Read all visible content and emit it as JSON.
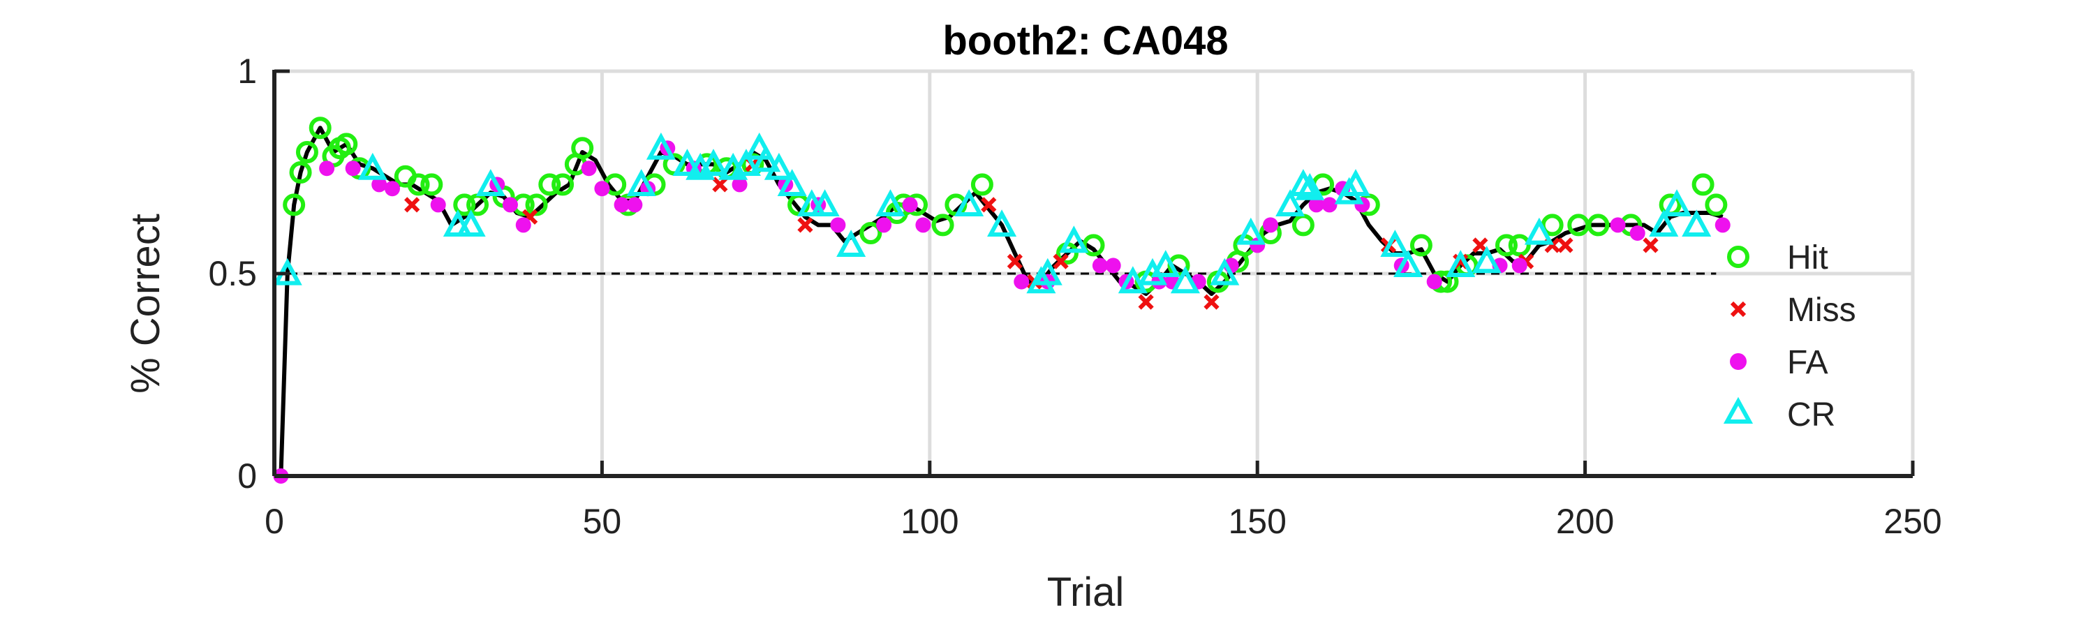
{
  "chart_data": {
    "type": "line",
    "title": "booth2: CA048",
    "xlabel": "Trial",
    "ylabel": "% Correct",
    "xlim": [
      0,
      250
    ],
    "ylim": [
      0,
      1
    ],
    "xticks": [
      0,
      50,
      100,
      150,
      200,
      250
    ],
    "xtick_labels": [
      "0",
      "50",
      "100",
      "150",
      "200",
      "250"
    ],
    "yticks": [
      0,
      0.5,
      1
    ],
    "ytick_labels": [
      "0",
      "0.5",
      "1"
    ],
    "grid": true,
    "reference_line": {
      "y": 0.5,
      "style": "dashed",
      "x_range": [
        0,
        220
      ]
    },
    "legend": {
      "placement": "right",
      "entries": [
        "Hit",
        "Miss",
        "FA",
        "CR"
      ]
    },
    "line": {
      "name": "",
      "x": [
        1,
        2,
        3,
        4,
        5,
        7,
        9,
        11,
        13,
        15,
        17,
        19,
        21,
        23,
        25,
        27,
        29,
        31,
        33,
        35,
        37,
        39,
        41,
        43,
        45,
        47,
        49,
        51,
        53,
        55,
        57,
        59,
        61,
        63,
        65,
        67,
        69,
        71,
        73,
        75,
        77,
        79,
        81,
        83,
        85,
        87,
        89,
        91,
        93,
        95,
        97,
        99,
        101,
        103,
        105,
        107,
        109,
        111,
        113,
        115,
        117,
        119,
        121,
        123,
        125,
        127,
        129,
        131,
        133,
        135,
        137,
        139,
        141,
        143,
        145,
        147,
        149,
        151,
        153,
        155,
        157,
        159,
        161,
        163,
        165,
        167,
        169,
        171,
        173,
        175,
        177,
        179,
        181,
        183,
        185,
        187,
        189,
        191,
        193,
        195,
        197,
        199,
        201,
        203,
        205,
        207,
        209,
        211,
        213,
        215,
        217,
        219,
        221
      ],
      "y": [
        0,
        0.5,
        0.67,
        0.75,
        0.8,
        0.86,
        0.8,
        0.82,
        0.77,
        0.76,
        0.74,
        0.72,
        0.72,
        0.7,
        0.68,
        0.62,
        0.64,
        0.67,
        0.7,
        0.69,
        0.65,
        0.64,
        0.67,
        0.7,
        0.72,
        0.8,
        0.78,
        0.72,
        0.68,
        0.68,
        0.74,
        0.8,
        0.79,
        0.77,
        0.77,
        0.77,
        0.75,
        0.77,
        0.8,
        0.78,
        0.72,
        0.68,
        0.64,
        0.62,
        0.62,
        0.58,
        0.6,
        0.62,
        0.64,
        0.67,
        0.67,
        0.65,
        0.63,
        0.64,
        0.67,
        0.7,
        0.66,
        0.62,
        0.55,
        0.48,
        0.48,
        0.52,
        0.55,
        0.58,
        0.56,
        0.52,
        0.48,
        0.47,
        0.45,
        0.48,
        0.52,
        0.5,
        0.48,
        0.45,
        0.48,
        0.52,
        0.56,
        0.6,
        0.62,
        0.63,
        0.67,
        0.7,
        0.71,
        0.7,
        0.68,
        0.62,
        0.58,
        0.55,
        0.55,
        0.56,
        0.5,
        0.48,
        0.52,
        0.55,
        0.55,
        0.56,
        0.53,
        0.53,
        0.57,
        0.58,
        0.6,
        0.61,
        0.62,
        0.62,
        0.62,
        0.62,
        0.62,
        0.6,
        0.64,
        0.65,
        0.65,
        0.65,
        0.64
      ]
    },
    "series": [
      {
        "name": "Hit",
        "marker": "circle",
        "color": "#22ee11",
        "x": [
          3,
          4,
          5,
          7,
          9,
          10,
          11,
          13,
          20,
          22,
          24,
          29,
          31,
          35,
          38,
          40,
          42,
          44,
          46,
          47,
          52,
          54,
          58,
          61,
          66,
          69,
          73,
          80,
          91,
          95,
          96,
          98,
          102,
          104,
          108,
          121,
          125,
          133,
          138,
          144,
          147,
          148,
          152,
          157,
          160,
          167,
          175,
          178,
          179,
          182,
          188,
          190,
          195,
          199,
          202,
          207,
          213,
          218,
          220
        ],
        "y": [
          0.67,
          0.75,
          0.8,
          0.86,
          0.79,
          0.81,
          0.82,
          0.76,
          0.74,
          0.72,
          0.72,
          0.67,
          0.67,
          0.69,
          0.67,
          0.67,
          0.72,
          0.72,
          0.77,
          0.81,
          0.72,
          0.67,
          0.72,
          0.77,
          0.77,
          0.76,
          0.77,
          0.67,
          0.6,
          0.65,
          0.67,
          0.67,
          0.62,
          0.67,
          0.72,
          0.55,
          0.57,
          0.48,
          0.52,
          0.48,
          0.53,
          0.57,
          0.6,
          0.62,
          0.72,
          0.67,
          0.57,
          0.48,
          0.48,
          0.52,
          0.57,
          0.57,
          0.62,
          0.62,
          0.62,
          0.62,
          0.67,
          0.72,
          0.67
        ]
      },
      {
        "name": "Miss",
        "marker": "x",
        "color": "#ee1111",
        "x": [
          21,
          39,
          68,
          73,
          81,
          109,
          113,
          116,
          120,
          133,
          143,
          170,
          181,
          184,
          191,
          195,
          197,
          210
        ],
        "y": [
          0.67,
          0.64,
          0.72,
          0.77,
          0.62,
          0.67,
          0.53,
          0.48,
          0.53,
          0.43,
          0.43,
          0.57,
          0.53,
          0.57,
          0.53,
          0.57,
          0.57,
          0.57
        ]
      },
      {
        "name": "FA",
        "marker": "dot",
        "color": "#ee11ee",
        "x": [
          1,
          8,
          12,
          16,
          18,
          25,
          34,
          36,
          38,
          48,
          50,
          53,
          55,
          57,
          60,
          64,
          71,
          78,
          83,
          86,
          93,
          97,
          99,
          114,
          118,
          126,
          128,
          130,
          135,
          137,
          141,
          146,
          150,
          152,
          159,
          161,
          163,
          166,
          172,
          177,
          187,
          190,
          205,
          208,
          221
        ],
        "y": [
          0,
          0.76,
          0.76,
          0.72,
          0.71,
          0.67,
          0.72,
          0.67,
          0.62,
          0.76,
          0.71,
          0.67,
          0.67,
          0.71,
          0.81,
          0.76,
          0.72,
          0.72,
          0.67,
          0.62,
          0.62,
          0.67,
          0.62,
          0.48,
          0.48,
          0.52,
          0.52,
          0.48,
          0.48,
          0.48,
          0.48,
          0.52,
          0.57,
          0.62,
          0.67,
          0.67,
          0.71,
          0.67,
          0.52,
          0.48,
          0.52,
          0.52,
          0.62,
          0.6,
          0.62
        ]
      },
      {
        "name": "CR",
        "marker": "triangle",
        "color": "#11eeee",
        "x": [
          2,
          15,
          28,
          30,
          33,
          56,
          59,
          63,
          65,
          67,
          70,
          72,
          74,
          75,
          77,
          79,
          82,
          84,
          88,
          94,
          106,
          111,
          117,
          118,
          122,
          131,
          134,
          136,
          139,
          145,
          149,
          155,
          157,
          158,
          164,
          165,
          171,
          173,
          181,
          185,
          193,
          212,
          214,
          217
        ],
        "y": [
          0.5,
          0.76,
          0.62,
          0.62,
          0.72,
          0.72,
          0.81,
          0.77,
          0.76,
          0.77,
          0.76,
          0.77,
          0.81,
          0.78,
          0.76,
          0.72,
          0.67,
          0.67,
          0.57,
          0.67,
          0.67,
          0.62,
          0.48,
          0.5,
          0.58,
          0.48,
          0.5,
          0.52,
          0.48,
          0.5,
          0.6,
          0.67,
          0.72,
          0.71,
          0.7,
          0.72,
          0.57,
          0.52,
          0.52,
          0.53,
          0.6,
          0.62,
          0.67,
          0.62
        ]
      }
    ]
  },
  "colors": {
    "line": "#000000",
    "hit": "#22ee11",
    "miss": "#ee1111",
    "fa": "#ee11ee",
    "cr": "#11eeee",
    "grid": "#dddddd",
    "axis": "#222222"
  }
}
